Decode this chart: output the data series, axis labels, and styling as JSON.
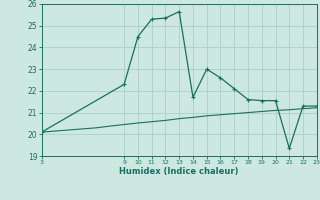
{
  "xlabel": "Humidex (Indice chaleur)",
  "background_color": "#cce8e0",
  "grid_color": "#aacfc8",
  "line_color": "#1a6e62",
  "xlim": [
    3,
    23
  ],
  "ylim": [
    19,
    26
  ],
  "xticks": [
    3,
    9,
    10,
    11,
    12,
    13,
    14,
    15,
    16,
    17,
    18,
    19,
    20,
    21,
    22,
    23
  ],
  "yticks": [
    19,
    20,
    21,
    22,
    23,
    24,
    25,
    26
  ],
  "line1_x": [
    3,
    4,
    5,
    6,
    7,
    8,
    9,
    10,
    11,
    12,
    13,
    14,
    15,
    16,
    17,
    18,
    19,
    20,
    21,
    22,
    23
  ],
  "line1_y": [
    20.1,
    20.15,
    20.2,
    20.25,
    20.3,
    20.38,
    20.45,
    20.52,
    20.58,
    20.64,
    20.72,
    20.78,
    20.85,
    20.9,
    20.95,
    21.0,
    21.05,
    21.1,
    21.13,
    21.18,
    21.22
  ],
  "line2_x": [
    3,
    9,
    10,
    11,
    12,
    13,
    14,
    15,
    16,
    17,
    18,
    19,
    20,
    21,
    22,
    23
  ],
  "line2_y": [
    20.1,
    22.3,
    24.5,
    25.3,
    25.35,
    25.65,
    21.7,
    23.0,
    22.6,
    22.1,
    21.6,
    21.55,
    21.55,
    19.35,
    21.3,
    21.3
  ]
}
